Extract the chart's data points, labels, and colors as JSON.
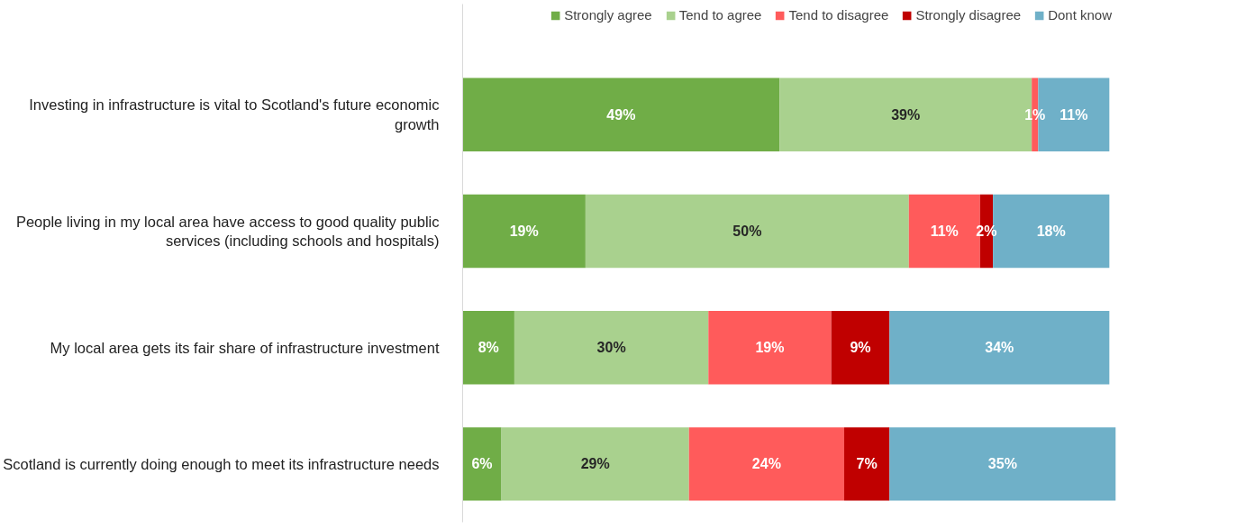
{
  "chart_data": {
    "type": "bar",
    "orientation": "horizontal",
    "stacked": true,
    "categories": [
      "Investing in infrastructure is vital to Scotland's future economic growth",
      "People living in my local area have access to good quality public services (including schools and hospitals)",
      "My local area gets its fair share of infrastructure investment",
      "Scotland is currently doing enough to meet its infrastructure needs"
    ],
    "series": [
      {
        "name": "Strongly agree",
        "color": "#70ad47",
        "values": [
          49,
          19,
          8,
          6
        ],
        "value_labels": [
          "49%",
          "19%",
          "8%",
          "6%"
        ]
      },
      {
        "name": "Tend to agree",
        "color": "#a9d18e",
        "values": [
          39,
          50,
          30,
          29
        ],
        "value_labels": [
          "39%",
          "50%",
          "30%",
          "29%"
        ]
      },
      {
        "name": "Tend to disagree",
        "color": "#ff5b5b",
        "values": [
          1,
          11,
          19,
          24
        ],
        "value_labels": [
          "1%",
          "11%",
          "19%",
          "24%"
        ]
      },
      {
        "name": "Strongly disagree",
        "color": "#c00000",
        "values": [
          null,
          2,
          9,
          7
        ],
        "value_labels": [
          null,
          "2%",
          "9%",
          "7%"
        ]
      },
      {
        "name": "Dont know",
        "color": "#6fb0c8",
        "values": [
          11,
          18,
          34,
          35
        ],
        "value_labels": [
          "11%",
          "18%",
          "34%",
          "35%"
        ]
      }
    ],
    "xlim": [
      0,
      101
    ],
    "tick_labels": "y",
    "legend": "top right"
  }
}
